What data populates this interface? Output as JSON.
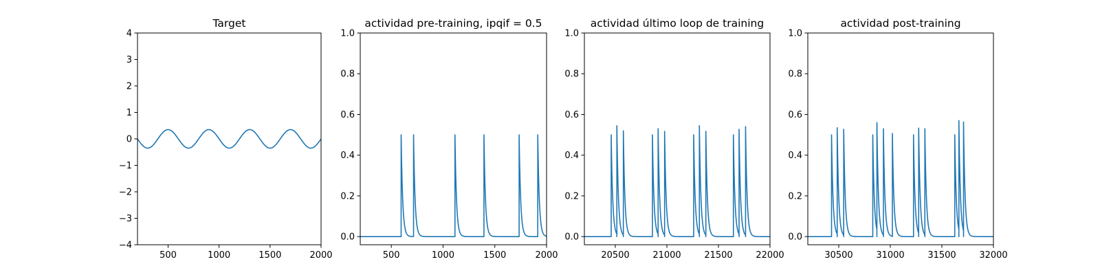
{
  "figure": {
    "background": "#ffffff",
    "line_color": "#1f77b4"
  },
  "chart_data": [
    {
      "type": "line",
      "title": "Target",
      "xlabel": "",
      "ylabel": "",
      "xlim": [
        200,
        2000
      ],
      "ylim": [
        -4,
        4
      ],
      "xticks": [
        500,
        1000,
        1500,
        2000
      ],
      "yticks": [
        -4,
        -3,
        -2,
        -1,
        0,
        1,
        2,
        3,
        4
      ],
      "grid": false,
      "signal": {
        "kind": "sine",
        "amplitude": 0.35,
        "period": 400,
        "zero_crossing_rising": 400,
        "x_start": 200,
        "x_end": 2000
      },
      "series": [
        {
          "x": [
            200,
            300,
            400,
            500,
            600,
            700,
            800,
            900,
            1000,
            1100,
            1200,
            1300,
            1400,
            1500,
            1600,
            1700,
            1800,
            1900,
            2000
          ],
          "values": [
            0.0,
            -0.35,
            0.0,
            0.35,
            0.0,
            -0.35,
            0.0,
            0.35,
            0.0,
            -0.35,
            0.0,
            0.35,
            0.0,
            -0.35,
            0.0,
            0.35,
            0.0,
            -0.35,
            0.0
          ]
        }
      ]
    },
    {
      "type": "line",
      "title": "actividad pre-training, ipqif = 0.5",
      "xlabel": "",
      "ylabel": "",
      "xlim": [
        200,
        2000
      ],
      "ylim": [
        -0.04,
        1.0
      ],
      "xticks": [
        500,
        1000,
        1500,
        2000
      ],
      "yticks": [
        0.0,
        0.2,
        0.4,
        0.6,
        0.8,
        1.0
      ],
      "grid": false,
      "baseline": 0.0,
      "decay_constant": 15,
      "spikes": [
        {
          "x": 595,
          "peak": 0.5
        },
        {
          "x": 715,
          "peak": 0.5
        },
        {
          "x": 1115,
          "peak": 0.5
        },
        {
          "x": 1395,
          "peak": 0.5
        },
        {
          "x": 1735,
          "peak": 0.5
        },
        {
          "x": 1915,
          "peak": 0.5
        }
      ]
    },
    {
      "type": "line",
      "title": "actividad último loop de training",
      "xlabel": "",
      "ylabel": "",
      "xlim": [
        20200,
        22000
      ],
      "ylim": [
        -0.04,
        1.0
      ],
      "xticks": [
        20500,
        21000,
        21500,
        22000
      ],
      "yticks": [
        0.0,
        0.2,
        0.4,
        0.6,
        0.8,
        1.0
      ],
      "grid": false,
      "baseline": 0.0,
      "decay_constant": 15,
      "spikes": [
        {
          "x": 20460,
          "peak": 0.5
        },
        {
          "x": 20515,
          "peak": 0.545
        },
        {
          "x": 20578,
          "peak": 0.52
        },
        {
          "x": 20860,
          "peak": 0.5
        },
        {
          "x": 20915,
          "peak": 0.53
        },
        {
          "x": 20978,
          "peak": 0.517
        },
        {
          "x": 21260,
          "peak": 0.5
        },
        {
          "x": 21315,
          "peak": 0.545
        },
        {
          "x": 21378,
          "peak": 0.517
        },
        {
          "x": 21645,
          "peak": 0.5
        },
        {
          "x": 21700,
          "peak": 0.527
        },
        {
          "x": 21763,
          "peak": 0.54
        }
      ]
    },
    {
      "type": "line",
      "title": "actividad post-training",
      "xlabel": "",
      "ylabel": "",
      "xlim": [
        30200,
        32000
      ],
      "ylim": [
        -0.04,
        1.0
      ],
      "xticks": [
        30500,
        31000,
        31500,
        32000
      ],
      "yticks": [
        0.0,
        0.2,
        0.4,
        0.6,
        0.8,
        1.0
      ],
      "grid": false,
      "baseline": 0.0,
      "decay_constant": 15,
      "spikes": [
        {
          "x": 30430,
          "peak": 0.5
        },
        {
          "x": 30485,
          "peak": 0.535
        },
        {
          "x": 30548,
          "peak": 0.527
        },
        {
          "x": 30830,
          "peak": 0.5
        },
        {
          "x": 30870,
          "peak": 0.56
        },
        {
          "x": 30933,
          "peak": 0.53
        },
        {
          "x": 31020,
          "peak": 0.507
        },
        {
          "x": 31225,
          "peak": 0.5
        },
        {
          "x": 31275,
          "peak": 0.533
        },
        {
          "x": 31335,
          "peak": 0.53
        },
        {
          "x": 31625,
          "peak": 0.5
        },
        {
          "x": 31665,
          "peak": 0.57
        },
        {
          "x": 31710,
          "peak": 0.563
        }
      ]
    }
  ]
}
